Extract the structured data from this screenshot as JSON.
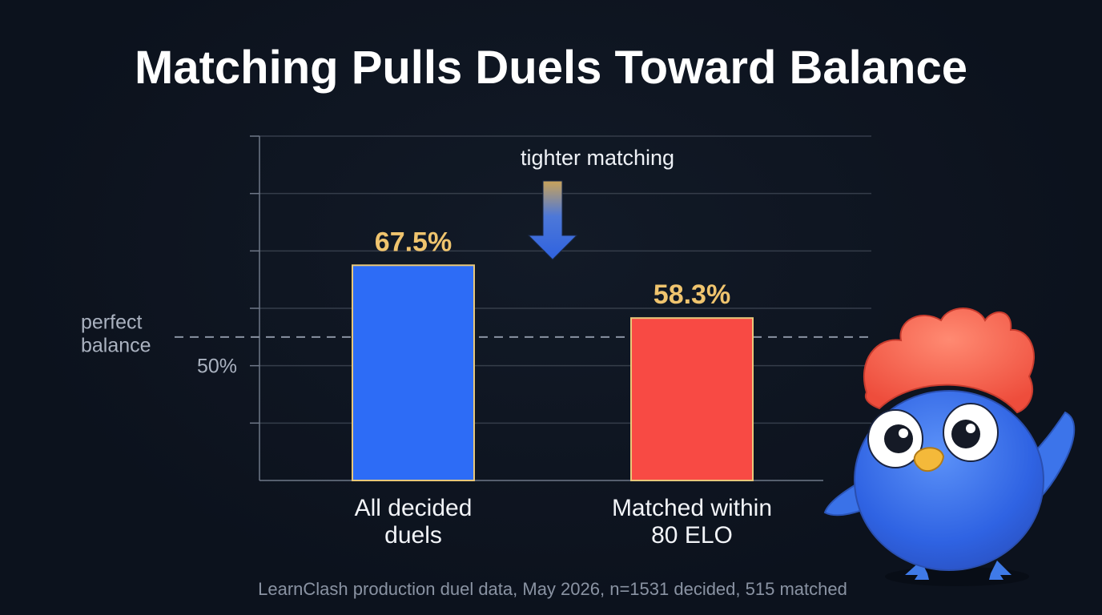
{
  "chart_data": {
    "type": "bar",
    "title": "Matching Pulls Duels Toward Balance",
    "categories": [
      [
        "All decided",
        "duels"
      ],
      [
        "Matched within",
        "80 ELO"
      ]
    ],
    "values": [
      67.5,
      58.3
    ],
    "value_labels": [
      "67.5%",
      "58.3%"
    ],
    "bar_colors": [
      "#2d6cf6",
      "#f84a44"
    ],
    "bar_outline": "#e8c77a",
    "ylim": [
      30,
      90
    ],
    "yticks": [
      40,
      50,
      60,
      70,
      80,
      90
    ],
    "ytick_labels": [
      "",
      "50%",
      "",
      "",
      "",
      ""
    ],
    "reference_line": {
      "value": 55,
      "label": [
        "perfect",
        "balance"
      ]
    },
    "annotation": {
      "text": "tighter matching",
      "icon": "down-arrow-icon"
    },
    "grid": true,
    "footnote": "LearnClash production duel data, May 2026, n=1531 decided, 515 matched"
  },
  "mascot": {
    "icon": "blue-bird-mascot-icon"
  },
  "colors": {
    "background": "#0c121d",
    "grid": "#353d4a",
    "accent_gold": "#efc46e"
  }
}
